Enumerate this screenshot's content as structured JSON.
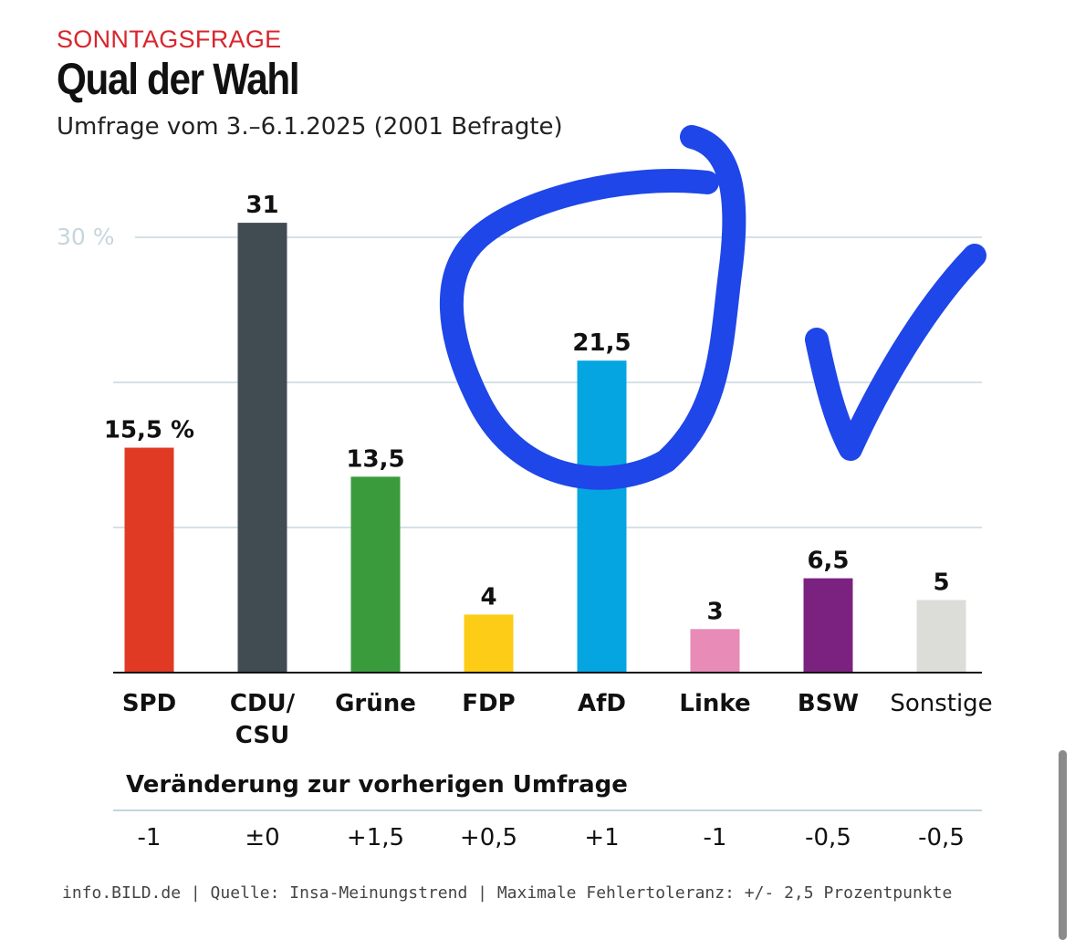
{
  "header": {
    "kicker": "SONNTAGSFRAGE",
    "title": "Qual der Wahl",
    "subtitle": "Umfrage vom 3.–6.1.2025 (2001 Befragte)"
  },
  "chart_data": {
    "type": "bar",
    "categories": [
      "SPD",
      "CDU/\nCSU",
      "Grüne",
      "FDP",
      "AfD",
      "Linke",
      "BSW",
      "Sonstige"
    ],
    "values": [
      15.5,
      31,
      13.5,
      4,
      21.5,
      3,
      6.5,
      5
    ],
    "value_labels": [
      "15,5 %",
      "31",
      "13,5",
      "4",
      "21,5",
      "3",
      "6,5",
      "5"
    ],
    "colors": [
      "#e03a24",
      "#414b52",
      "#3a9b3c",
      "#fccc16",
      "#05a5e2",
      "#e88bb7",
      "#7b2280",
      "#dcdcd8"
    ],
    "bold_categories": [
      true,
      true,
      true,
      true,
      true,
      true,
      true,
      false
    ],
    "ylim": [
      0,
      30
    ],
    "gridlines": [
      0,
      10,
      20,
      30
    ],
    "ytick_label": "30 %",
    "ylabel": "",
    "xlabel": ""
  },
  "change": {
    "title": "Veränderung zur vorherigen Umfrage",
    "values": [
      "-1",
      "±0",
      "+1,5",
      "+0,5",
      "+1",
      "-1",
      "-0,5",
      "-0,5"
    ]
  },
  "footer": {
    "source": "info.BILD.de | Quelle: Insa-Meinungstrend | Maximale Fehlertoleranz: +/- 2,5 Prozentpunkte"
  },
  "annotation": {
    "color": "#1f46e8",
    "shapes": [
      "hand-drawn-circle",
      "hand-drawn-checkmark"
    ]
  }
}
